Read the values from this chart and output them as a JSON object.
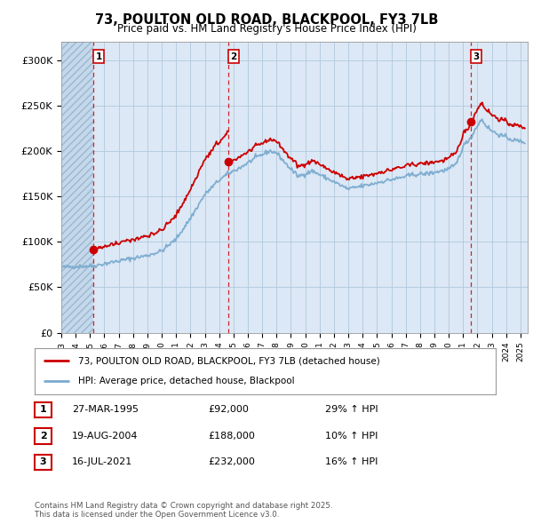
{
  "title_line1": "73, POULTON OLD ROAD, BLACKPOOL, FY3 7LB",
  "title_line2": "Price paid vs. HM Land Registry's House Price Index (HPI)",
  "ylim": [
    0,
    320000
  ],
  "yticks": [
    0,
    50000,
    100000,
    150000,
    200000,
    250000,
    300000
  ],
  "ytick_labels": [
    "£0",
    "£50K",
    "£100K",
    "£150K",
    "£200K",
    "£250K",
    "£300K"
  ],
  "sale_color": "#cc0000",
  "hpi_color": "#7aabcf",
  "sale_label": "73, POULTON OLD ROAD, BLACKPOOL, FY3 7LB (detached house)",
  "hpi_label": "HPI: Average price, detached house, Blackpool",
  "sale_dates_decimal": [
    1995.23,
    2004.63,
    2021.54
  ],
  "sale_prices": [
    92000,
    188000,
    232000
  ],
  "table_rows": [
    {
      "num": "1",
      "date": "27-MAR-1995",
      "price": "£92,000",
      "hpi": "29% ↑ HPI"
    },
    {
      "num": "2",
      "date": "19-AUG-2004",
      "price": "£188,000",
      "hpi": "10% ↑ HPI"
    },
    {
      "num": "3",
      "date": "16-JUL-2021",
      "price": "£232,000",
      "hpi": "16% ↑ HPI"
    }
  ],
  "footnote": "Contains HM Land Registry data © Crown copyright and database right 2025.\nThis data is licensed under the Open Government Licence v3.0.",
  "background_color": "#ffffff",
  "plot_bg_color": "#dce8f5",
  "hatch_color": "#c5d8eb",
  "grid_color": "#b0c8de",
  "x_min": 1993.0,
  "x_max": 2025.5
}
